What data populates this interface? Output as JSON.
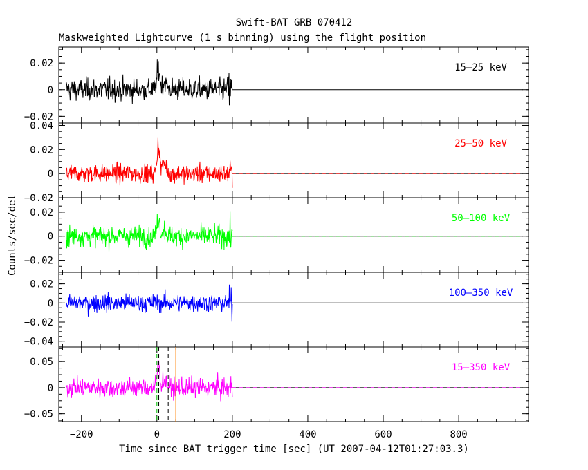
{
  "chart_data": {
    "type": "line",
    "title": "Swift-BAT GRB 070412",
    "subtitle": "Maskweighted Lightcurve (1 s binning) using the flight position",
    "xlabel": "Time since BAT trigger time [sec] (UT 2007-04-12T01:27:03.3)",
    "ylabel": "Counts/sec/det",
    "xlim": [
      -260,
      985
    ],
    "xticks": [
      -200,
      0,
      200,
      400,
      600,
      800
    ],
    "data_range": [
      -240,
      200
    ],
    "flat_range": [
      200,
      970
    ],
    "markers": [
      {
        "name": "T0",
        "x": 0,
        "color": "#00c000",
        "style": "dashed"
      },
      {
        "name": "T90 start",
        "x": 5,
        "color": "#000000",
        "style": "dashed"
      },
      {
        "name": "T90 end",
        "x": 30,
        "color": "#000000",
        "style": "dashed"
      },
      {
        "name": "T100 end",
        "x": 50,
        "color": "#ff8000",
        "style": "solid"
      }
    ],
    "panels": [
      {
        "label": "15–25 keV",
        "color": "#000000",
        "ylim": [
          -0.025,
          0.032
        ],
        "yticks": [
          0.02,
          0,
          -0.02
        ],
        "yticklabels": [
          "0.02",
          "0",
          "−0.02"
        ],
        "noise": 0.0075,
        "peak": 0.016,
        "dashed_zero": false
      },
      {
        "label": "25–50 keV",
        "color": "#ff0000",
        "ylim": [
          -0.02,
          0.042
        ],
        "yticks": [
          0.04,
          0.02,
          0,
          -0.02
        ],
        "yticklabels": [
          "0.04",
          "0.02",
          "0",
          "−0.02"
        ],
        "noise": 0.007,
        "peak": 0.024,
        "dashed_zero": true
      },
      {
        "label": "50–100 keV",
        "color": "#00ff00",
        "ylim": [
          -0.03,
          0.032
        ],
        "yticks": [
          0.02,
          0,
          -0.02
        ],
        "yticklabels": [
          "0.02",
          "0",
          "−0.02"
        ],
        "noise": 0.0075,
        "peak": 0.015,
        "dashed_zero": true
      },
      {
        "label": "100–350 keV",
        "color": "#0000ff",
        "ylim": [
          -0.046,
          0.032
        ],
        "yticks": [
          0.02,
          0,
          -0.02,
          -0.04
        ],
        "yticklabels": [
          "0.02",
          "0",
          "−0.02",
          "−0.04"
        ],
        "noise": 0.0085,
        "peak": 0.0,
        "dashed_zero": false
      },
      {
        "label": "15–350 keV",
        "color": "#ff00ff",
        "ylim": [
          -0.065,
          0.078
        ],
        "yticks": [
          0.05,
          0,
          -0.05
        ],
        "yticklabels": [
          "0.05",
          "0",
          "−0.05"
        ],
        "noise": 0.017,
        "peak": 0.045,
        "dashed_zero": true
      }
    ]
  }
}
